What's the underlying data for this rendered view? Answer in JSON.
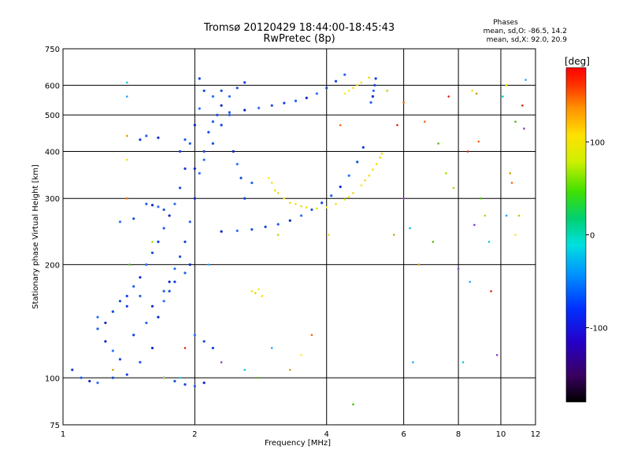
{
  "chart_data": {
    "type": "scatter",
    "title": "Tromsø 20120429 18:44:00-18:45:43",
    "subtitle": "RwPretec (8p)",
    "xlabel": "Frequency [MHz]",
    "ylabel": "Stationary phase Virtual Height [km]",
    "xscale": "log",
    "yscale": "log",
    "xlim": [
      1,
      12
    ],
    "ylim": [
      75,
      750
    ],
    "xticks": [
      1,
      2,
      4,
      6,
      8,
      10,
      12
    ],
    "yticks": [
      75,
      100,
      200,
      300,
      400,
      500,
      600,
      750
    ],
    "grid": true,
    "stats": {
      "heading": "Phases",
      "line_o": "mean, sd,O: -86.5, 14.2",
      "line_x": "mean, sd,X:  92.0, 20.9"
    },
    "colorbar": {
      "label": "[deg]",
      "ticks": [
        100,
        0,
        -100
      ],
      "range": [
        -180,
        180
      ]
    },
    "series": [
      {
        "values": [
          [
            2.25,
            500
          ],
          [
            2.4,
            508
          ],
          [
            2.6,
            515
          ],
          [
            2.8,
            522
          ],
          [
            3.0,
            530
          ],
          [
            3.2,
            538
          ],
          [
            3.4,
            545
          ],
          [
            3.6,
            555
          ],
          [
            3.8,
            570
          ],
          [
            4.0,
            590
          ],
          [
            4.2,
            615
          ],
          [
            4.4,
            640
          ],
          [
            2.3,
            245
          ],
          [
            2.5,
            246
          ],
          [
            2.7,
            248
          ],
          [
            2.9,
            252
          ],
          [
            3.1,
            256
          ],
          [
            3.3,
            262
          ],
          [
            3.5,
            270
          ],
          [
            3.7,
            280
          ],
          [
            3.9,
            292
          ],
          [
            4.1,
            305
          ],
          [
            4.3,
            322
          ],
          [
            4.5,
            345
          ],
          [
            4.7,
            375
          ],
          [
            4.85,
            410
          ],
          [
            5.05,
            540
          ],
          [
            5.1,
            560
          ],
          [
            5.12,
            580
          ],
          [
            5.15,
            600
          ],
          [
            5.18,
            625
          ],
          [
            1.2,
            135
          ],
          [
            1.25,
            140
          ],
          [
            1.3,
            150
          ],
          [
            1.35,
            160
          ],
          [
            1.4,
            165
          ],
          [
            1.45,
            175
          ],
          [
            1.5,
            185
          ],
          [
            1.55,
            200
          ],
          [
            1.6,
            215
          ],
          [
            1.65,
            230
          ],
          [
            1.7,
            250
          ],
          [
            1.75,
            270
          ],
          [
            1.8,
            290
          ],
          [
            1.85,
            320
          ],
          [
            1.9,
            360
          ],
          [
            1.95,
            420
          ],
          [
            2.0,
            470
          ],
          [
            2.05,
            520
          ],
          [
            2.1,
            580
          ],
          [
            2.05,
            625
          ],
          [
            1.7,
            170
          ],
          [
            1.75,
            180
          ],
          [
            1.8,
            195
          ],
          [
            1.85,
            210
          ],
          [
            1.9,
            230
          ],
          [
            1.95,
            260
          ],
          [
            2.0,
            300
          ],
          [
            2.05,
            350
          ],
          [
            2.1,
            400
          ],
          [
            2.15,
            450
          ],
          [
            2.2,
            480
          ],
          [
            2.3,
            530
          ],
          [
            2.4,
            560
          ],
          [
            2.5,
            590
          ],
          [
            2.6,
            610
          ],
          [
            1.55,
            290
          ],
          [
            1.6,
            288
          ],
          [
            1.65,
            285
          ],
          [
            1.7,
            280
          ],
          [
            1.85,
            400
          ],
          [
            1.9,
            430
          ],
          [
            2.0,
            360
          ],
          [
            2.1,
            380
          ],
          [
            2.2,
            420
          ],
          [
            2.3,
            470
          ],
          [
            2.4,
            500
          ],
          [
            2.45,
            400
          ],
          [
            2.5,
            370
          ],
          [
            2.55,
            340
          ],
          [
            1.05,
            105
          ],
          [
            1.1,
            100
          ],
          [
            1.15,
            98
          ],
          [
            1.2,
            97
          ],
          [
            1.3,
            100
          ],
          [
            1.4,
            102
          ],
          [
            1.5,
            110
          ],
          [
            1.6,
            120
          ],
          [
            1.7,
            100
          ],
          [
            1.8,
            98
          ],
          [
            1.9,
            96
          ],
          [
            2.0,
            95
          ],
          [
            2.1,
            97
          ],
          [
            1.2,
            145
          ],
          [
            1.3,
            150
          ],
          [
            1.4,
            155
          ],
          [
            1.5,
            165
          ],
          [
            1.6,
            155
          ],
          [
            1.7,
            160
          ],
          [
            1.75,
            170
          ],
          [
            1.8,
            180
          ],
          [
            1.9,
            190
          ],
          [
            1.95,
            200
          ],
          [
            1.35,
            260
          ],
          [
            1.45,
            265
          ],
          [
            1.5,
            430
          ],
          [
            1.55,
            440
          ],
          [
            1.65,
            435
          ],
          [
            2.2,
            560
          ],
          [
            2.3,
            580
          ],
          [
            2.6,
            300
          ],
          [
            2.7,
            330
          ],
          [
            1.25,
            125
          ],
          [
            1.3,
            118
          ],
          [
            1.35,
            112
          ],
          [
            1.45,
            130
          ],
          [
            1.55,
            140
          ],
          [
            1.65,
            145
          ],
          [
            2.0,
            130
          ],
          [
            2.1,
            125
          ],
          [
            2.2,
            120
          ]
        ]
      },
      {
        "values": [
          [
            3.0,
            330
          ],
          [
            3.1,
            310
          ],
          [
            3.2,
            300
          ],
          [
            3.4,
            290
          ],
          [
            3.6,
            284
          ],
          [
            3.8,
            282
          ],
          [
            4.0,
            284
          ],
          [
            4.2,
            290
          ],
          [
            4.4,
            298
          ],
          [
            4.6,
            310
          ],
          [
            4.8,
            325
          ],
          [
            5.0,
            345
          ],
          [
            5.2,
            370
          ],
          [
            5.35,
            395
          ],
          [
            2.95,
            340
          ],
          [
            3.05,
            315
          ],
          [
            3.3,
            292
          ],
          [
            3.5,
            286
          ],
          [
            4.5,
            303
          ],
          [
            4.9,
            335
          ],
          [
            5.1,
            358
          ],
          [
            5.3,
            385
          ],
          [
            4.4,
            570
          ],
          [
            4.6,
            590
          ],
          [
            4.8,
            610
          ],
          [
            5.0,
            628
          ],
          [
            4.5,
            580
          ],
          [
            4.7,
            600
          ],
          [
            2.7,
            170
          ],
          [
            2.75,
            168
          ],
          [
            2.8,
            172
          ],
          [
            2.85,
            165
          ],
          [
            1.4,
            380
          ],
          [
            1.7,
            100
          ],
          [
            3.5,
            115
          ],
          [
            4.05,
            240
          ],
          [
            8.6,
            580
          ],
          [
            10.3,
            600
          ],
          [
            10.8,
            240
          ]
        ]
      },
      {
        "values": [
          [
            1.4,
            610
          ],
          [
            1.4,
            560
          ],
          [
            1.4,
            440
          ],
          [
            1.4,
            300
          ],
          [
            1.42,
            200
          ],
          [
            1.6,
            230
          ],
          [
            1.9,
            120
          ],
          [
            2.3,
            110
          ],
          [
            2.6,
            105
          ],
          [
            3.0,
            120
          ],
          [
            3.3,
            105
          ],
          [
            3.7,
            130
          ],
          [
            4.6,
            85
          ],
          [
            5.5,
            580
          ],
          [
            5.8,
            470
          ],
          [
            6.0,
            300
          ],
          [
            6.2,
            250
          ],
          [
            6.3,
            110
          ],
          [
            6.5,
            200
          ],
          [
            6.7,
            480
          ],
          [
            7.2,
            420
          ],
          [
            7.5,
            350
          ],
          [
            7.6,
            560
          ],
          [
            8.0,
            195
          ],
          [
            8.2,
            110
          ],
          [
            8.5,
            180
          ],
          [
            8.8,
            570
          ],
          [
            8.9,
            425
          ],
          [
            9.0,
            300
          ],
          [
            9.2,
            270
          ],
          [
            9.5,
            170
          ],
          [
            9.8,
            115
          ],
          [
            10.1,
            560
          ],
          [
            10.3,
            270
          ],
          [
            10.5,
            350
          ],
          [
            10.6,
            330
          ],
          [
            10.8,
            480
          ],
          [
            11.0,
            270
          ],
          [
            11.2,
            530
          ],
          [
            11.3,
            460
          ],
          [
            1.85,
            100
          ],
          [
            2.15,
            200
          ],
          [
            5.7,
            240
          ],
          [
            6.0,
            540
          ],
          [
            7.0,
            230
          ],
          [
            7.8,
            320
          ],
          [
            8.4,
            400
          ],
          [
            8.7,
            255
          ],
          [
            9.4,
            230
          ],
          [
            11.4,
            620
          ],
          [
            1.3,
            105
          ],
          [
            4.3,
            470
          ],
          [
            2.8,
            100
          ],
          [
            3.1,
            240
          ]
        ]
      }
    ]
  }
}
